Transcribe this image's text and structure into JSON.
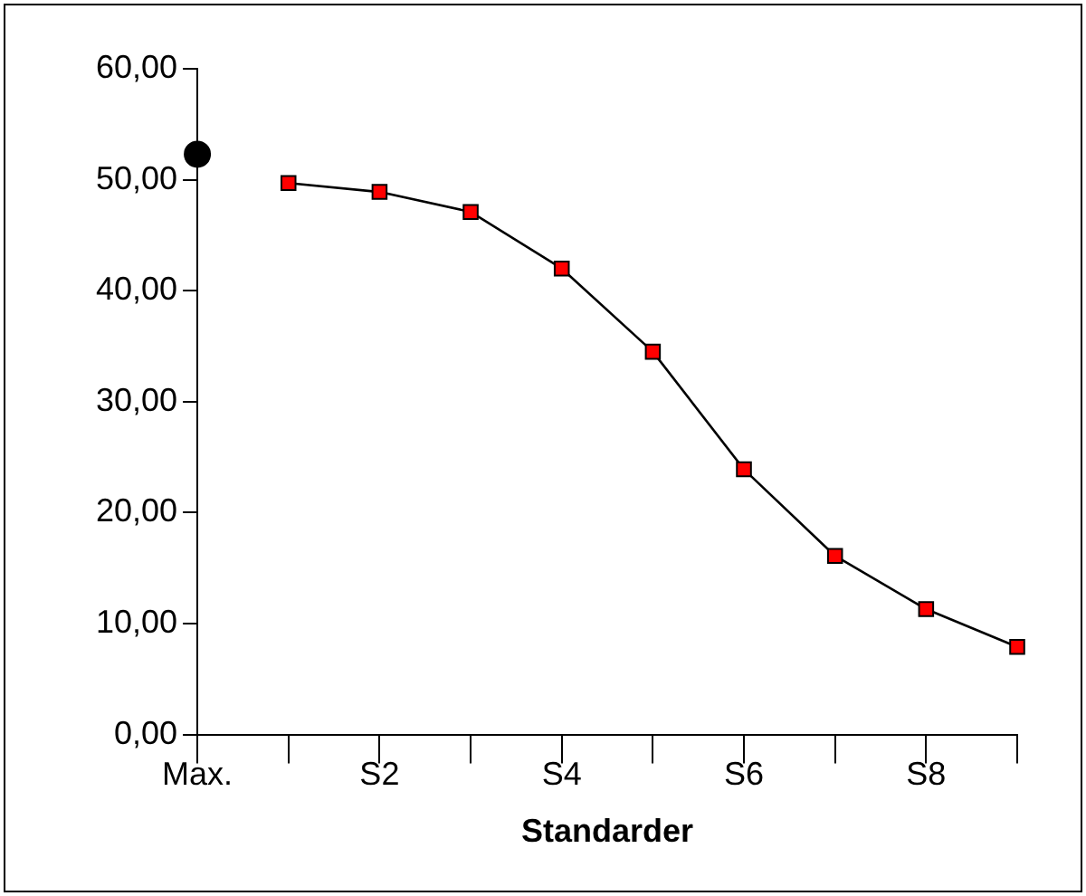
{
  "chart_data": {
    "type": "line",
    "xlabel": "Standarder",
    "categories": [
      "Max.",
      null,
      "S2",
      null,
      "S4",
      null,
      "S6",
      null,
      "S8",
      null
    ],
    "series": [
      {
        "type": "scatter",
        "color": "#000000",
        "marker": "circle",
        "values": [
          52.3,
          null,
          null,
          null,
          null,
          null,
          null,
          null,
          null,
          null
        ]
      },
      {
        "color": "#ff0000",
        "marker": "square",
        "line_style": "solid",
        "values": [
          null,
          49.7,
          48.9,
          47.1,
          42.0,
          34.5,
          23.9,
          16.1,
          11.3,
          7.9
        ]
      }
    ],
    "ylim": [
      0,
      60
    ],
    "yticks": [
      {
        "value": 0,
        "label": "0,00"
      },
      {
        "value": 10,
        "label": "10,00"
      },
      {
        "value": 20,
        "label": "20,00"
      },
      {
        "value": 30,
        "label": "30,00"
      },
      {
        "value": 40,
        "label": "40,00"
      },
      {
        "value": 50,
        "label": "50,00"
      },
      {
        "value": 60,
        "label": "60,00"
      }
    ],
    "grid": false,
    "legend": false
  }
}
